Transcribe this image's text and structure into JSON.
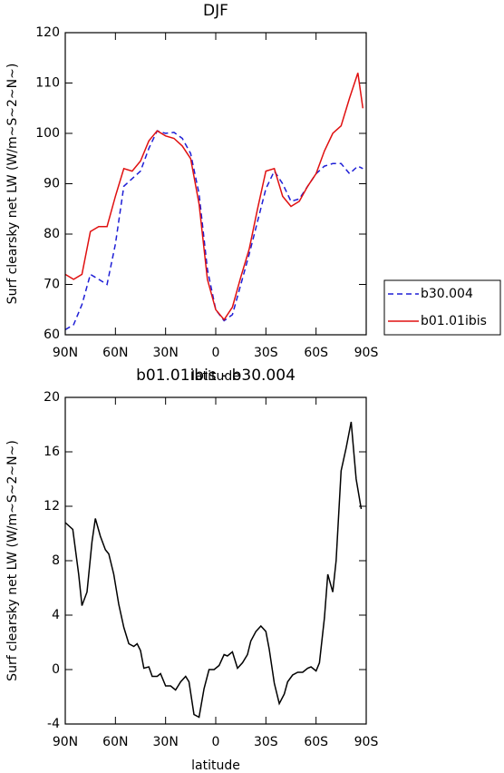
{
  "chart_data": [
    {
      "type": "line",
      "title": "DJF",
      "xlabel": "latitude",
      "ylabel": "Surf clearsky net LW (W/m~S~2~N~)",
      "xlim": [
        90,
        -90
      ],
      "ylim": [
        60,
        120
      ],
      "xticks": [
        {
          "value": 90,
          "label": "90N"
        },
        {
          "value": 60,
          "label": "60N"
        },
        {
          "value": 30,
          "label": "30N"
        },
        0,
        {
          "value": -30,
          "label": "30S"
        },
        {
          "value": -60,
          "label": "60S"
        },
        {
          "value": -90,
          "label": "90S"
        }
      ],
      "yticks": [
        60,
        70,
        80,
        90,
        100,
        110,
        120
      ],
      "legend": "right",
      "series": [
        {
          "name": "b30.004",
          "color": "#1f1fd6",
          "dashed": true,
          "x": [
            90,
            85,
            80,
            75,
            70,
            65,
            60,
            55,
            50,
            45,
            40,
            35,
            30,
            25,
            20,
            15,
            10,
            5,
            0,
            -5,
            -10,
            -15,
            -20,
            -25,
            -30,
            -35,
            -40,
            -45,
            -50,
            -55,
            -60,
            -65,
            -70,
            -75,
            -80,
            -85,
            -88
          ],
          "values": [
            61,
            62,
            66,
            72,
            71,
            70,
            78,
            89.5,
            91,
            92.5,
            97,
            100.5,
            100,
            100.2,
            99,
            96,
            88,
            73,
            65,
            62.8,
            64,
            70,
            76,
            82.5,
            89,
            92.5,
            90,
            86.5,
            87,
            89.5,
            92,
            93.5,
            94,
            94,
            92,
            93.5,
            93
          ]
        },
        {
          "name": "b01.01ibis",
          "color": "#e01010",
          "dashed": false,
          "x": [
            90,
            85,
            80,
            75,
            70,
            65,
            60,
            55,
            50,
            45,
            40,
            35,
            30,
            25,
            20,
            15,
            10,
            5,
            0,
            -5,
            -10,
            -15,
            -20,
            -25,
            -30,
            -35,
            -40,
            -45,
            -50,
            -55,
            -60,
            -65,
            -70,
            -75,
            -80,
            -85,
            -88
          ],
          "values": [
            72,
            71,
            72,
            80.5,
            81.5,
            81.5,
            87.5,
            93,
            92.5,
            94.5,
            98.5,
            100.5,
            99.5,
            99,
            97.5,
            95,
            86,
            71,
            65,
            63,
            65.5,
            71.5,
            77,
            85,
            92.5,
            93,
            87.5,
            85.5,
            86.5,
            89.5,
            92,
            96.5,
            100,
            101.5,
            107,
            112,
            105
          ]
        }
      ]
    },
    {
      "type": "line",
      "title": "b01.01ibis - b30.004",
      "xlabel": "latitude",
      "ylabel": "Surf clearsky net LW (W/m~S~2~N~)",
      "xlim": [
        90,
        -90
      ],
      "ylim": [
        -4,
        20
      ],
      "xticks": [
        {
          "value": 90,
          "label": "90N"
        },
        {
          "value": 60,
          "label": "60N"
        },
        {
          "value": 30,
          "label": "30N"
        },
        0,
        {
          "value": -30,
          "label": "30S"
        },
        {
          "value": -60,
          "label": "60S"
        },
        {
          "value": -90,
          "label": "90S"
        }
      ],
      "yticks": [
        -4,
        0,
        4,
        8,
        12,
        16,
        20
      ],
      "series": [
        {
          "color": "#000000",
          "dashed": false,
          "x": [
            90,
            85.5,
            82,
            80,
            77,
            74,
            72,
            69,
            66,
            64,
            61,
            58,
            55,
            52,
            49,
            47,
            45,
            43,
            40,
            38,
            35,
            33,
            30,
            27,
            24,
            21,
            18,
            16,
            13,
            10,
            7,
            4,
            1,
            -2,
            -5,
            -7,
            -10,
            -13,
            -16,
            -19,
            -21,
            -24,
            -27,
            -30,
            -32,
            -35,
            -38,
            -41,
            -43,
            -46,
            -49,
            -52,
            -55,
            -57,
            -60,
            -62,
            -65,
            -67,
            -70,
            -72,
            -75,
            -78,
            -81,
            -84,
            -87
          ],
          "values": [
            10.8,
            10.3,
            7,
            4.7,
            5.7,
            9.4,
            11.1,
            9.8,
            8.8,
            8.5,
            7,
            4.8,
            3.1,
            1.9,
            1.7,
            1.9,
            1.4,
            0.1,
            0.2,
            -0.5,
            -0.5,
            -0.3,
            -1.2,
            -1.2,
            -1.5,
            -0.9,
            -0.5,
            -0.9,
            -3.3,
            -3.5,
            -1.4,
            0,
            0,
            0.3,
            1.1,
            1,
            1.3,
            0.1,
            0.5,
            1.1,
            2.1,
            2.8,
            3.2,
            2.8,
            1.5,
            -1,
            -2.5,
            -1.8,
            -0.9,
            -0.4,
            -0.2,
            -0.2,
            0.1,
            0.2,
            -0.1,
            0.5,
            3.8,
            7,
            5.7,
            8,
            14.6,
            16.3,
            18.2,
            14,
            11.8
          ]
        }
      ]
    }
  ]
}
